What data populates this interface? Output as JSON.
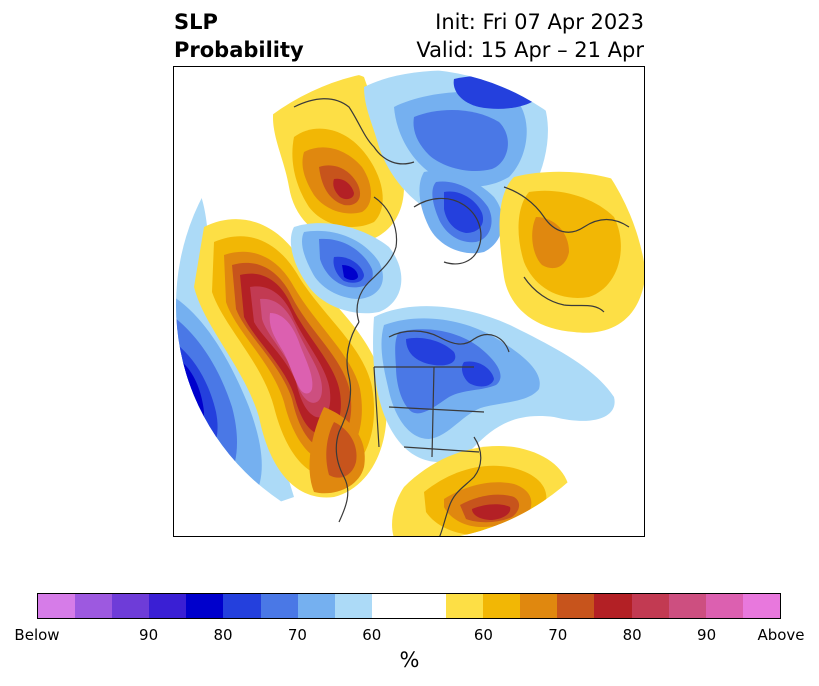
{
  "title": {
    "variable": "SLP",
    "quantity": "Probability",
    "init": "Init: Fri 07 Apr 2023",
    "valid": "Valid: 15 Apr – 21 Apr"
  },
  "colorbar": {
    "colors": [
      "#d67ce8",
      "#9d59e0",
      "#6e3cd8",
      "#3a1fd4",
      "#0000cc",
      "#2440dd",
      "#4a78e6",
      "#75b0f0",
      "#acdaf7",
      "#ffffff",
      "#ffffff",
      "#fddf45",
      "#f2b705",
      "#e0880f",
      "#c7541c",
      "#b32025",
      "#c23a52",
      "#cd4f80",
      "#dc60b0",
      "#e878dd"
    ],
    "ticks": [
      "Below",
      "90",
      "80",
      "70",
      "60",
      "60",
      "70",
      "80",
      "90",
      "Above"
    ],
    "unit": "%"
  }
}
